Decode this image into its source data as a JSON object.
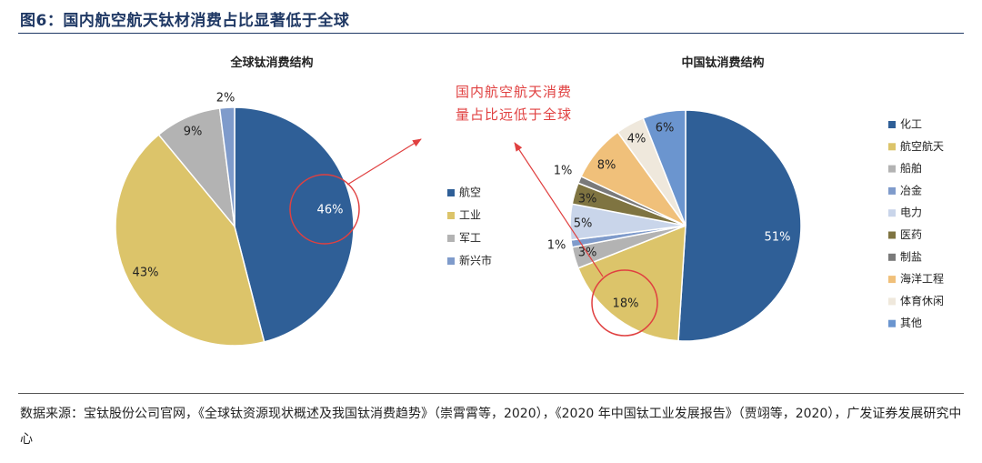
{
  "figure": {
    "title": "图6：国内航空航天钛材消费占比显著低于全球",
    "annotation": [
      "国内航空航天消费",
      "量占比远低于全球"
    ],
    "source": "数据来源：宝钛股份公司官网，《全球钛资源现状概述及我国钛消费趋势》（崇霄霄等，2020），《2020 年中国钛工业发展报告》（贾翊等，2020），广发证券发展研究中心"
  },
  "chart_data": [
    {
      "type": "pie",
      "title": "全球钛消费结构",
      "categories": [
        "航空",
        "工业",
        "军工",
        "新兴市"
      ],
      "values": [
        46,
        43,
        9,
        2
      ],
      "labels": [
        "46%",
        "43%",
        "9%",
        "2%"
      ],
      "colors": [
        "#2f5f97",
        "#dcc46a",
        "#b3b3b3",
        "#7f9bcb"
      ],
      "legend": "right"
    },
    {
      "type": "pie",
      "title": "中国钛消费结构",
      "categories": [
        "化工",
        "航空航天",
        "船舶",
        "冶金",
        "电力",
        "医药",
        "制盐",
        "海洋工程",
        "体育休闲",
        "其他"
      ],
      "values": [
        51,
        18,
        3,
        1,
        5,
        3,
        1,
        8,
        4,
        6
      ],
      "labels": [
        "51%",
        "18%",
        "3%",
        "1%",
        "5%",
        "3%",
        "1%",
        "8%",
        "4%",
        "6%"
      ],
      "colors": [
        "#2f5f97",
        "#dcc46a",
        "#b3b3b3",
        "#7f9bcb",
        "#c9d5ea",
        "#7f7441",
        "#7a7a7a",
        "#f0c07a",
        "#efe8dc",
        "#6b95cf"
      ],
      "legend": "right"
    }
  ]
}
